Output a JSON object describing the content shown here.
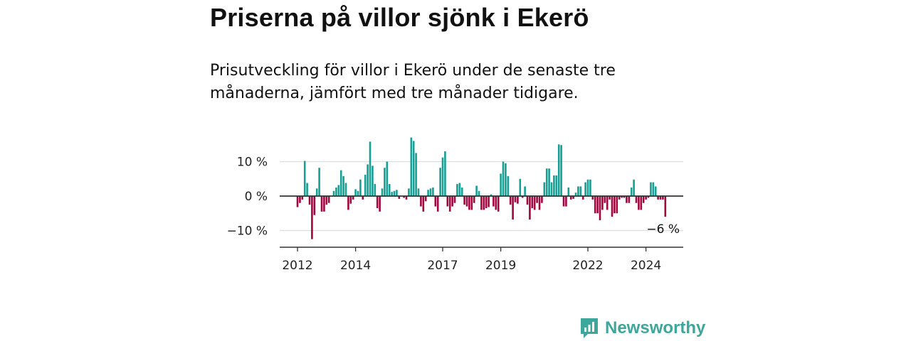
{
  "title": "Priserna på villor sjönk i Ekerö",
  "subtitle": "Prisutveckling för villor i Ekerö under de senaste tre månaderna, jämfört med tre månader tidigare.",
  "brand": {
    "name": "Newsworthy",
    "icon": "newsworthy-logo-icon",
    "color": "#3ea79b"
  },
  "chart_data": {
    "type": "bar",
    "title": "Priserna på villor sjönk i Ekerö",
    "xlabel": "",
    "ylabel": "",
    "unit": "%",
    "ylim": [
      -15,
      18
    ],
    "x_start": 2012.0,
    "x_step_months": 1,
    "yticks": [
      {
        "value": 10,
        "label": "10 %"
      },
      {
        "value": 0,
        "label": "0 %"
      },
      {
        "value": -10,
        "label": "−10 %"
      }
    ],
    "xticks": [
      {
        "value": 2012,
        "label": "2012"
      },
      {
        "value": 2014,
        "label": "2014"
      },
      {
        "value": 2017,
        "label": "2017"
      },
      {
        "value": 2019,
        "label": "2019"
      },
      {
        "value": 2022,
        "label": "2022"
      },
      {
        "value": 2024,
        "label": "2024"
      }
    ],
    "colors": {
      "positive": "#179f94",
      "negative": "#a3053f",
      "zero_line": "#333333",
      "grid": "#dddddd",
      "axis": "#333333"
    },
    "values": [
      -3.2,
      -2.0,
      -1.0,
      10.2,
      3.8,
      -2.5,
      -12.5,
      -5.5,
      2.2,
      8.2,
      -4.5,
      -4.5,
      -2.5,
      -2.0,
      0,
      1.5,
      2.5,
      3.2,
      7.5,
      5.8,
      3.8,
      -4.0,
      -2.2,
      -1.0,
      2.0,
      1.5,
      4.8,
      -1.0,
      6.2,
      9.2,
      15.8,
      8.8,
      3.5,
      -3.5,
      -4.5,
      2.2,
      8.2,
      10.0,
      3.5,
      1.2,
      1.5,
      1.8,
      -0.8,
      0,
      -0.5,
      -1.0,
      2.2,
      17.0,
      16.0,
      12.5,
      2.2,
      -3.0,
      -4.5,
      -1.5,
      1.8,
      2.2,
      2.5,
      -3.0,
      -4.5,
      8.2,
      11.2,
      13.0,
      -3.0,
      -4.5,
      -3.0,
      -2.0,
      3.5,
      3.8,
      2.5,
      -2.5,
      -3.0,
      -4.0,
      -4.0,
      -2.0,
      3.0,
      1.5,
      -4.0,
      -4.0,
      -3.5,
      -3.2,
      0.5,
      -3.0,
      -4.0,
      -4.5,
      6.5,
      10.0,
      9.5,
      5.8,
      -2.5,
      -6.8,
      -1.8,
      -2.2,
      5.0,
      -0.5,
      2.8,
      -2.5,
      -6.8,
      -3.5,
      -4.0,
      -2.0,
      -4.0,
      -2.0,
      4.0,
      8.0,
      8.0,
      4.0,
      6.0,
      6.0,
      15.0,
      14.8,
      -3.0,
      -3.0,
      2.5,
      -1.0,
      -0.8,
      1.0,
      2.8,
      2.8,
      -1.0,
      4.0,
      4.8,
      4.8,
      -1.0,
      -5.0,
      -5.0,
      -7.0,
      -4.0,
      -2.0,
      -4.0,
      -1.0,
      -6.0,
      -5.0,
      -5.0,
      -1.0,
      -0.5,
      -0.5,
      -2.0,
      -2.0,
      2.5,
      4.8,
      -2.0,
      -4.0,
      -4.0,
      -2.0,
      -1.0,
      -0.5,
      4.0,
      4.0,
      2.8,
      -1.0,
      -1.0,
      -1.0,
      -6.0
    ],
    "end_label": "−6 %"
  }
}
